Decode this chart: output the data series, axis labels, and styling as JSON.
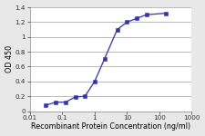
{
  "x": [
    0.031,
    0.063,
    0.125,
    0.25,
    0.5,
    1.0,
    2.0,
    5.0,
    10.0,
    20.0,
    40.0,
    160.0
  ],
  "y": [
    0.08,
    0.12,
    0.12,
    0.19,
    0.2,
    0.4,
    0.7,
    1.1,
    1.2,
    1.25,
    1.3,
    1.32
  ],
  "line_color": "#4444aa",
  "marker_color": "#3333aa",
  "marker_style": "s",
  "marker_size": 2.5,
  "line_width": 1.0,
  "xlabel": "Recombinant Protein Concentration (ng/ml)",
  "ylabel": "OD 450",
  "xlabel_fontsize": 5.8,
  "ylabel_fontsize": 5.8,
  "tick_fontsize": 5.2,
  "ylim": [
    0,
    1.4
  ],
  "xlim": [
    0.01,
    1000
  ],
  "yticks": [
    0,
    0.2,
    0.4,
    0.6,
    0.8,
    1.0,
    1.2,
    1.4
  ],
  "ytick_labels": [
    "0",
    "0.2",
    "0.4",
    "0.6",
    "0.8",
    "1",
    "1.2",
    "1.4"
  ],
  "xticks": [
    0.01,
    0.1,
    1,
    10,
    100,
    1000
  ],
  "xtick_labels": [
    "0.01",
    "0.1",
    "1",
    "10",
    "100",
    "1000"
  ],
  "plot_bg_color": "#ffffff",
  "fig_bg_color": "#e8e8e8",
  "grid_color": "#b0b0b0",
  "grid_linewidth": 0.6,
  "spine_color": "#888888",
  "spine_linewidth": 0.5
}
